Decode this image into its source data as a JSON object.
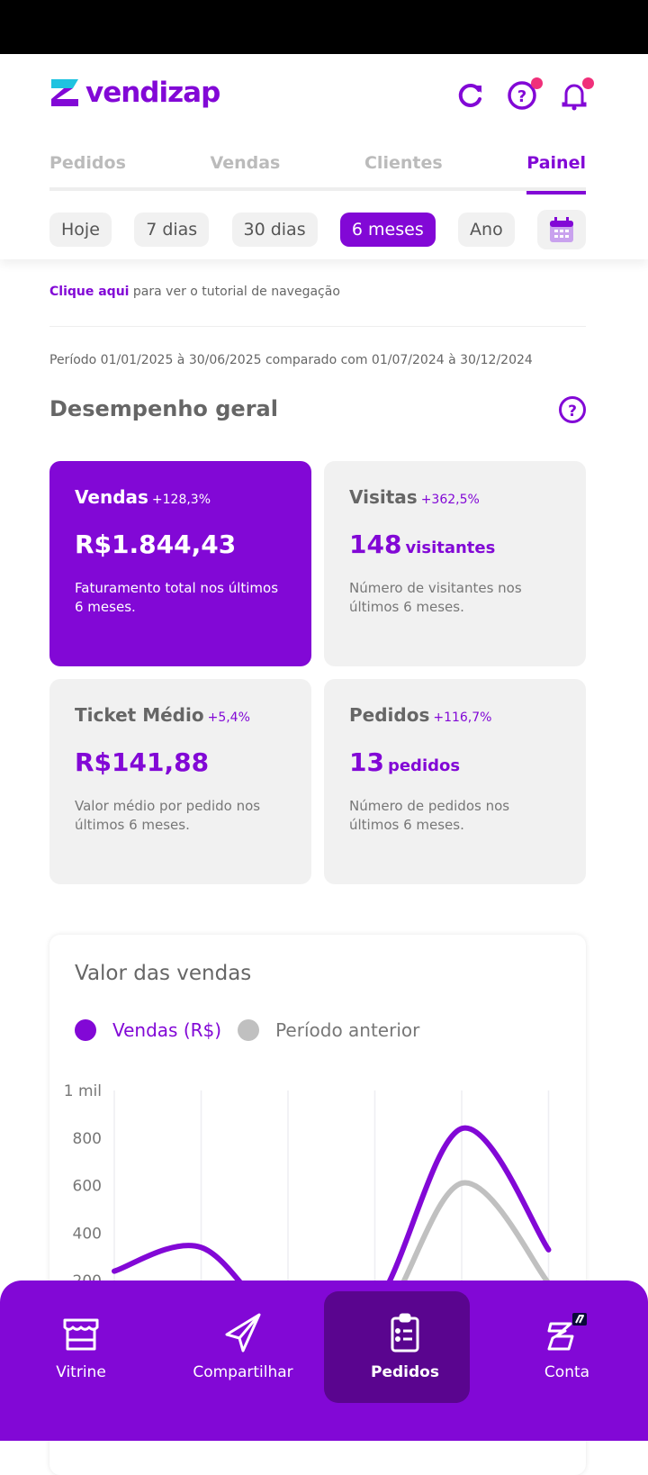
{
  "app": {
    "name": "vendizap",
    "brand_color": "#8208d6",
    "accent_color": "#1fc3e0",
    "badge_color": "#f0307a"
  },
  "header": {
    "icons": [
      "refresh-icon",
      "help-icon",
      "bell-icon"
    ]
  },
  "tabs": [
    {
      "label": "Pedidos"
    },
    {
      "label": "Vendas"
    },
    {
      "label": "Clientes"
    },
    {
      "label": "Painel",
      "active": true
    }
  ],
  "filters": [
    {
      "label": "Hoje"
    },
    {
      "label": "7 dias"
    },
    {
      "label": "30 dias"
    },
    {
      "label": "6 meses",
      "active": true
    },
    {
      "label": "Ano"
    }
  ],
  "tutorial": {
    "link": "Clique aqui",
    "text": " para ver o tutorial de navegação"
  },
  "period": "Período 01/01/2025 à 30/06/2025 comparado com 01/07/2024 à 30/12/2024",
  "section_title": "Desempenho geral",
  "cards": [
    {
      "title": "Vendas",
      "change": "+128,3%",
      "value": "R$1.844,43",
      "unit": "",
      "desc": "Faturamento total nos últimos 6 meses."
    },
    {
      "title": "Visitas",
      "change": "+362,5%",
      "value": "148",
      "unit": "visitantes",
      "desc": "Número de visitantes nos últimos 6 meses."
    },
    {
      "title": "Ticket Médio",
      "change": "+5,4%",
      "value": "R$141,88",
      "unit": "",
      "desc": "Valor médio por pedido nos últimos 6 meses."
    },
    {
      "title": "Pedidos",
      "change": "+116,7%",
      "value": "13",
      "unit": "pedidos",
      "desc": "Número de pedidos nos últimos 6 meses."
    }
  ],
  "chart_data": {
    "type": "line",
    "title": "Valor das vendas",
    "ylim": [
      0,
      1000
    ],
    "yticks": [
      "1 mil",
      "800",
      "600",
      "400",
      "200"
    ],
    "grid": true,
    "legend": "top-left",
    "series": [
      {
        "name": "Vendas (R$)",
        "color": "#8208d6",
        "values": [
          240,
          340,
          0,
          94,
          840,
          330
        ]
      },
      {
        "name": "Período anterior",
        "color": "#c0c0c0",
        "values": [
          0,
          0,
          0,
          0,
          610,
          190
        ]
      }
    ]
  },
  "nav": [
    {
      "label": "Vitrine",
      "icon": "store-icon"
    },
    {
      "label": "Compartilhar",
      "icon": "paper-plane-icon"
    },
    {
      "label": "Pedidos",
      "icon": "clipboard-list-icon",
      "active": true
    },
    {
      "label": "Conta",
      "icon": "account-logo-icon"
    }
  ]
}
